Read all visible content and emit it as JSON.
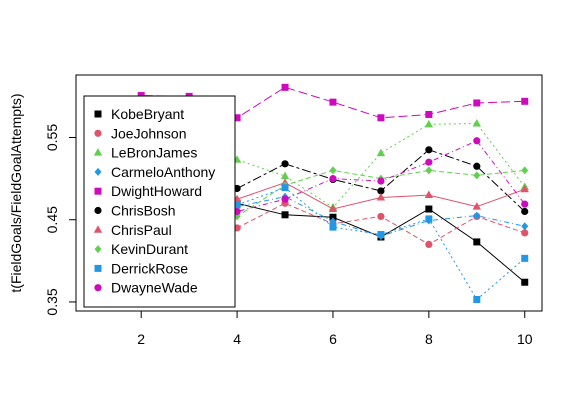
{
  "chart_data": {
    "type": "line",
    "ylabel": "t(FieldGoals/FieldGoalAttempts)",
    "xlabel": "",
    "title": "",
    "xlim": [
      0.64,
      10.36
    ],
    "ylim": [
      0.339,
      0.626
    ],
    "x_ticks": [
      2,
      4,
      6,
      8,
      10
    ],
    "y_ticks": [
      0.35,
      0.45,
      0.55
    ],
    "x_tick_labels": [
      "2",
      "4",
      "6",
      "8",
      "10"
    ],
    "y_tick_labels": [
      "0.35",
      "0.45",
      "0.55"
    ],
    "x": [
      1,
      2,
      3,
      4,
      5,
      6,
      7,
      8,
      9,
      10
    ],
    "legend_position": "top-left",
    "grid": false,
    "series": [
      {
        "name": "KobeBryant",
        "color": "#000000",
        "marker": "square",
        "dash": "0",
        "values": [
          0.47,
          0.472,
          0.467,
          0.47,
          0.456,
          0.453,
          0.429,
          0.463,
          0.423,
          0.374
        ]
      },
      {
        "name": "JoeJohnson",
        "color": "#DF536B",
        "marker": "circle",
        "dash": "5,3",
        "values": [
          0.442,
          0.437,
          0.443,
          0.44,
          0.47,
          0.445,
          0.454,
          0.42,
          0.454,
          0.434
        ]
      },
      {
        "name": "LeBronJames",
        "color": "#61D04F",
        "marker": "triangle",
        "dash": "2,3",
        "values": [
          0.54,
          0.532,
          0.545,
          0.523,
          0.503,
          0.465,
          0.531,
          0.566,
          0.567,
          0.49
        ]
      },
      {
        "name": "CarmeloAnthony",
        "color": "#2297E6",
        "marker": "diamond",
        "dash": "1,3,5,3",
        "values": [
          0.47,
          0.468,
          0.473,
          0.466,
          0.478,
          0.448,
          0.43,
          0.449,
          0.455,
          0.442
        ]
      },
      {
        "name": "DwightHoward",
        "color": "#CD0BBC",
        "marker": "square",
        "dash": "9,4",
        "values": [
          0.586,
          0.601,
          0.6,
          0.574,
          0.611,
          0.593,
          0.574,
          0.578,
          0.592,
          0.594
        ]
      },
      {
        "name": "ChrisBosh",
        "color": "#000000",
        "marker": "circle",
        "dash": "9,3,3,3",
        "values": [
          0.49,
          0.487,
          0.484,
          0.488,
          0.518,
          0.499,
          0.485,
          0.535,
          0.515,
          0.46
        ]
      },
      {
        "name": "ChrisPaul",
        "color": "#DF536B",
        "marker": "triangle",
        "dash": "0",
        "values": [
          0.46,
          0.452,
          0.469,
          0.475,
          0.495,
          0.463,
          0.477,
          0.48,
          0.466,
          0.487
        ]
      },
      {
        "name": "KevinDurant",
        "color": "#61D04F",
        "marker": "diamond",
        "dash": "5,3",
        "values": [
          0.448,
          0.46,
          0.458,
          0.454,
          0.492,
          0.51,
          0.5,
          0.51,
          0.504,
          0.51
        ]
      },
      {
        "name": "DerrickRose",
        "color": "#2297E6",
        "marker": "square",
        "dash": "2,3",
        "values": [
          0.452,
          0.456,
          0.46,
          0.468,
          0.489,
          0.441,
          0.432,
          0.451,
          0.353,
          0.403
        ]
      },
      {
        "name": "DwayneWade",
        "color": "#CD0BBC",
        "marker": "circle",
        "dash": "1,3,5,3",
        "values": [
          0.47,
          0.473,
          0.458,
          0.46,
          0.475,
          0.5,
          0.497,
          0.52,
          0.546,
          0.469
        ]
      }
    ]
  }
}
